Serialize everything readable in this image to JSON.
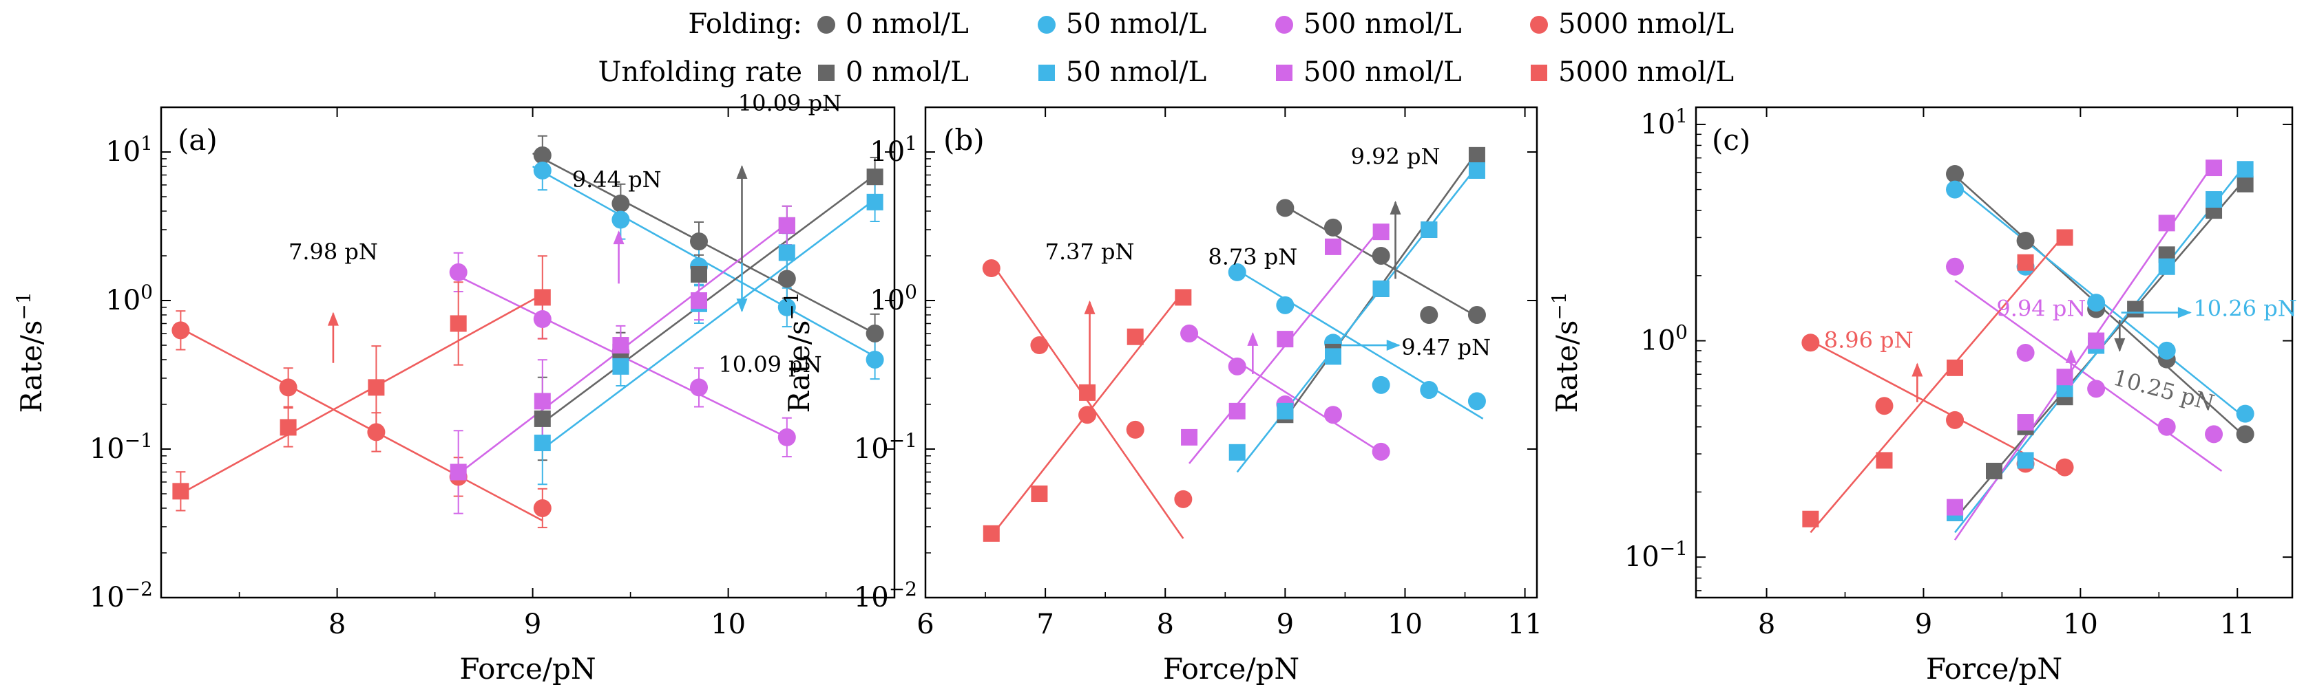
{
  "legend": {
    "folding_label": "Folding:",
    "unfolding_label": "Unfolding rate",
    "entries": [
      "0 nmol/L",
      "50 nmol/L",
      "500 nmol/L",
      "5000 nmol/L"
    ]
  },
  "colors": {
    "0 nmol/L": "#666666",
    "50 nmol/L": "#3fb6e8",
    "500 nmol/L": "#d267e8",
    "5000 nmol/L": "#ef5d5d"
  },
  "chart_data": [
    {
      "type": "scatter",
      "panel_label": "(a)",
      "xlabel": "Force/pN",
      "ylabel": "Rate/s",
      "ylabel_sup": "−1",
      "yscale": "log",
      "xlim": [
        7.1,
        10.85
      ],
      "ylim": [
        0.01,
        20
      ],
      "x_ticks": [
        8,
        9,
        10
      ],
      "y_ticks": [
        {
          "value": 0.01,
          "base": "10",
          "exp": "−2"
        },
        {
          "value": 0.1,
          "base": "10",
          "exp": "−1"
        },
        {
          "value": 1,
          "base": "10",
          "exp": "0"
        },
        {
          "value": 10,
          "base": "10",
          "exp": "1"
        }
      ],
      "series": [
        {
          "name": "0 nmol/L",
          "kind": "folding",
          "x": [
            9.05,
            9.45,
            9.85,
            10.3,
            10.75
          ],
          "y": [
            9.5,
            4.5,
            2.5,
            1.4,
            0.6
          ],
          "fit": [
            [
              9.0,
              9.8
            ],
            [
              10.75,
              0.6
            ]
          ]
        },
        {
          "name": "50 nmol/L",
          "kind": "folding",
          "x": [
            9.05,
            9.45,
            9.85,
            10.3,
            10.75
          ],
          "y": [
            7.5,
            3.5,
            1.7,
            0.9,
            0.4
          ],
          "fit": [
            [
              9.0,
              8.0
            ],
            [
              10.75,
              0.42
            ]
          ]
        },
        {
          "name": "500 nmol/L",
          "kind": "folding",
          "x": [
            8.62,
            9.05,
            9.45,
            9.85,
            10.3
          ],
          "y": [
            1.55,
            0.75,
            0.45,
            0.26,
            0.12
          ],
          "fit": [
            [
              8.6,
              1.5
            ],
            [
              10.3,
              0.12
            ]
          ]
        },
        {
          "name": "5000 nmol/L",
          "kind": "folding",
          "x": [
            7.2,
            7.75,
            8.2,
            8.62,
            9.05
          ],
          "y": [
            0.63,
            0.26,
            0.13,
            0.065,
            0.04
          ],
          "fit": [
            [
              7.2,
              0.65
            ],
            [
              9.05,
              0.033
            ]
          ]
        },
        {
          "name": "0 nmol/L",
          "kind": "unfolding",
          "x": [
            9.05,
            9.45,
            9.85,
            10.3,
            10.75
          ],
          "y": [
            0.16,
            0.45,
            1.5,
            3.2,
            6.8
          ],
          "fit": [
            [
              9.05,
              0.15
            ],
            [
              10.75,
              7.0
            ]
          ]
        },
        {
          "name": "50 nmol/L",
          "kind": "unfolding",
          "x": [
            9.05,
            9.45,
            9.85,
            10.3,
            10.75
          ],
          "y": [
            0.11,
            0.36,
            0.95,
            2.1,
            4.6
          ],
          "fit": [
            [
              9.05,
              0.1
            ],
            [
              10.75,
              4.8
            ]
          ]
        },
        {
          "name": "500 nmol/L",
          "kind": "unfolding",
          "x": [
            8.62,
            9.05,
            9.45,
            9.85,
            10.3
          ],
          "y": [
            0.07,
            0.21,
            0.5,
            1.0,
            3.2
          ],
          "fit": [
            [
              8.6,
              0.065
            ],
            [
              10.3,
              3.3
            ]
          ]
        },
        {
          "name": "5000 nmol/L",
          "kind": "unfolding",
          "x": [
            7.2,
            7.75,
            8.2,
            8.62,
            9.05
          ],
          "y": [
            0.052,
            0.14,
            0.26,
            0.7,
            1.05
          ],
          "fit": [
            [
              7.2,
              0.05
            ],
            [
              9.05,
              1.1
            ]
          ]
        }
      ],
      "annotations": [
        {
          "text": "7.98 pN",
          "x": 7.98,
          "y0": 0.38,
          "y1": 0.82,
          "dir": "up",
          "color": "#ef5d5d",
          "tx": 7.98,
          "ty": 1.9,
          "anchor": "middle"
        },
        {
          "text": "9.44 pN",
          "x": 9.44,
          "y0": 1.3,
          "y1": 2.9,
          "dir": "up",
          "color": "#d267e8",
          "tx": 9.43,
          "ty": 5.8,
          "anchor": "middle"
        },
        {
          "text": "10.09 pN",
          "x": 10.07,
          "y0": 1.8,
          "y1": 8.0,
          "dir": "up",
          "color": "#666666",
          "tx": 10.05,
          "ty": 19,
          "anchor": "start"
        },
        {
          "text": "10.09 pN",
          "x": 10.07,
          "y0": 1.8,
          "y1": 0.85,
          "dir": "down",
          "color": "#3fb6e8",
          "tx": 9.95,
          "ty": 0.33,
          "anchor": "start"
        }
      ]
    },
    {
      "type": "scatter",
      "panel_label": "(b)",
      "xlabel": "Force/pN",
      "ylabel": "Rate/s",
      "ylabel_sup": "−1",
      "yscale": "log",
      "xlim": [
        6,
        11.1
      ],
      "ylim": [
        0.01,
        20
      ],
      "x_ticks": [
        6,
        7,
        8,
        9,
        10,
        11
      ],
      "y_ticks": [
        {
          "value": 0.01,
          "base": "10",
          "exp": "−2"
        },
        {
          "value": 0.1,
          "base": "10",
          "exp": "−1"
        },
        {
          "value": 1,
          "base": "10",
          "exp": "0"
        },
        {
          "value": 10,
          "base": "10",
          "exp": "1"
        }
      ],
      "series": [
        {
          "name": "0 nmol/L",
          "kind": "folding",
          "x": [
            9.0,
            9.4,
            9.8,
            10.2,
            10.6
          ],
          "y": [
            4.2,
            3.1,
            2.0,
            0.8,
            0.8
          ],
          "fit": [
            [
              9.0,
              4.3
            ],
            [
              10.6,
              0.78
            ]
          ]
        },
        {
          "name": "50 nmol/L",
          "kind": "folding",
          "x": [
            8.6,
            9.0,
            9.4,
            9.8,
            10.2,
            10.6
          ],
          "y": [
            1.55,
            0.93,
            0.52,
            0.27,
            0.25,
            0.21
          ],
          "fit": [
            [
              8.6,
              1.6
            ],
            [
              10.65,
              0.16
            ]
          ]
        },
        {
          "name": "500 nmol/L",
          "kind": "folding",
          "x": [
            8.2,
            8.6,
            9.0,
            9.4,
            9.8
          ],
          "y": [
            0.6,
            0.36,
            0.2,
            0.17,
            0.096
          ],
          "fit": [
            [
              8.2,
              0.62
            ],
            [
              9.8,
              0.095
            ]
          ]
        },
        {
          "name": "5000 nmol/L",
          "kind": "folding",
          "x": [
            6.55,
            6.95,
            7.35,
            7.75,
            8.15
          ],
          "y": [
            1.65,
            0.5,
            0.17,
            0.135,
            0.046
          ],
          "fit": [
            [
              6.55,
              1.8
            ],
            [
              8.15,
              0.025
            ]
          ]
        },
        {
          "name": "0 nmol/L",
          "kind": "unfolding",
          "x": [
            9.0,
            9.4,
            9.8,
            10.2,
            10.6
          ],
          "y": [
            0.17,
            0.45,
            1.2,
            3.0,
            9.5
          ],
          "fit": [
            [
              9.0,
              0.16
            ],
            [
              10.6,
              10.0
            ]
          ]
        },
        {
          "name": "50 nmol/L",
          "kind": "unfolding",
          "x": [
            8.6,
            9.0,
            9.4,
            9.8,
            10.2,
            10.6
          ],
          "y": [
            0.095,
            0.18,
            0.42,
            1.2,
            3.0,
            7.5
          ],
          "fit": [
            [
              8.6,
              0.07
            ],
            [
              10.6,
              8.0
            ]
          ]
        },
        {
          "name": "500 nmol/L",
          "kind": "unfolding",
          "x": [
            8.2,
            8.6,
            9.0,
            9.4,
            9.8
          ],
          "y": [
            0.12,
            0.18,
            0.55,
            2.3,
            2.9
          ],
          "fit": [
            [
              8.2,
              0.08
            ],
            [
              9.8,
              3.1
            ]
          ]
        },
        {
          "name": "5000 nmol/L",
          "kind": "unfolding",
          "x": [
            6.55,
            6.95,
            7.35,
            7.75,
            8.15
          ],
          "y": [
            0.027,
            0.05,
            0.24,
            0.57,
            1.05
          ],
          "fit": [
            [
              6.55,
              0.026
            ],
            [
              8.15,
              1.15
            ]
          ]
        }
      ],
      "annotations": [
        {
          "text": "7.37 pN",
          "x": 7.37,
          "y0": 0.22,
          "y1": 0.98,
          "dir": "up",
          "color": "#ef5d5d",
          "tx": 7.37,
          "ty": 1.9,
          "anchor": "middle"
        },
        {
          "text": "8.73 pN",
          "x": 8.73,
          "y0": 0.32,
          "y1": 0.6,
          "dir": "up",
          "color": "#d267e8",
          "tx": 8.73,
          "ty": 1.75,
          "anchor": "middle"
        },
        {
          "text": "9.92 pN",
          "x": 9.92,
          "y0": 1.4,
          "y1": 4.6,
          "dir": "up",
          "color": "#666666",
          "tx": 9.92,
          "ty": 8.3,
          "anchor": "middle"
        },
        {
          "text": "9.47 pN",
          "x": 9.47,
          "y0": 0.5,
          "y1": 0.5,
          "dir": "right",
          "x1": 9.95,
          "color": "#3fb6e8",
          "tx": 9.97,
          "ty": 0.43,
          "anchor": "start"
        }
      ]
    },
    {
      "type": "scatter",
      "panel_label": "(c)",
      "xlabel": "Force/pN",
      "ylabel": "Rate/s",
      "ylabel_sup": "−1",
      "yscale": "log",
      "xlim": [
        7.55,
        11.35
      ],
      "ylim": [
        0.065,
        12
      ],
      "x_ticks": [
        8,
        9,
        10,
        11
      ],
      "y_ticks": [
        {
          "value": 0.1,
          "base": "10",
          "exp": "−1"
        },
        {
          "value": 1,
          "base": "10",
          "exp": "0"
        },
        {
          "value": 10,
          "base": "10",
          "exp": "1"
        }
      ],
      "series": [
        {
          "name": "0 nmol/L",
          "kind": "folding",
          "x": [
            9.2,
            9.65,
            10.1,
            10.55,
            11.05
          ],
          "y": [
            5.9,
            2.9,
            1.4,
            0.82,
            0.37
          ],
          "fit": [
            [
              9.2,
              5.8
            ],
            [
              11.05,
              0.36
            ]
          ]
        },
        {
          "name": "50 nmol/L",
          "kind": "folding",
          "x": [
            9.2,
            9.65,
            10.1,
            10.55,
            11.05
          ],
          "y": [
            5.0,
            2.2,
            1.5,
            0.9,
            0.46
          ],
          "fit": [
            [
              9.2,
              5.3
            ],
            [
              11.05,
              0.44
            ]
          ]
        },
        {
          "name": "500 nmol/L",
          "kind": "folding",
          "x": [
            9.2,
            9.65,
            10.1,
            10.55,
            10.85
          ],
          "y": [
            2.2,
            0.88,
            0.6,
            0.4,
            0.37
          ],
          "fit": [
            [
              9.2,
              1.9
            ],
            [
              10.9,
              0.25
            ]
          ]
        },
        {
          "name": "5000 nmol/L",
          "kind": "folding",
          "x": [
            8.28,
            8.75,
            9.2,
            9.65,
            9.9
          ],
          "y": [
            0.98,
            0.5,
            0.43,
            0.27,
            0.26
          ],
          "fit": [
            [
              8.28,
              1.0
            ],
            [
              9.9,
              0.24
            ]
          ]
        },
        {
          "name": "0 nmol/L",
          "kind": "unfolding",
          "x": [
            9.2,
            9.45,
            9.65,
            9.9,
            10.35,
            10.55,
            10.85,
            11.05
          ],
          "y": [
            0.16,
            0.25,
            0.4,
            0.55,
            1.4,
            2.5,
            4.0,
            5.3
          ],
          "fit": [
            [
              9.2,
              0.15
            ],
            [
              11.05,
              5.6
            ]
          ]
        },
        {
          "name": "50 nmol/L",
          "kind": "unfolding",
          "x": [
            9.2,
            9.65,
            9.9,
            10.1,
            10.55,
            10.85,
            11.05
          ],
          "y": [
            0.16,
            0.28,
            0.6,
            0.95,
            2.2,
            4.5,
            6.2
          ],
          "fit": [
            [
              9.2,
              0.13
            ],
            [
              11.05,
              6.5
            ]
          ]
        },
        {
          "name": "500 nmol/L",
          "kind": "unfolding",
          "x": [
            9.2,
            9.65,
            9.9,
            10.1,
            10.55,
            10.85
          ],
          "y": [
            0.17,
            0.42,
            0.68,
            1.0,
            3.5,
            6.3
          ],
          "fit": [
            [
              9.2,
              0.12
            ],
            [
              10.85,
              6.6
            ]
          ]
        },
        {
          "name": "5000 nmol/L",
          "kind": "unfolding",
          "x": [
            8.28,
            8.75,
            9.2,
            9.65,
            9.9
          ],
          "y": [
            0.15,
            0.28,
            0.75,
            2.3,
            3.0
          ],
          "fit": [
            [
              8.28,
              0.13
            ],
            [
              9.9,
              3.1
            ]
          ]
        }
      ],
      "annotations": [
        {
          "text": "8.96 pN",
          "x": 8.96,
          "y0": 0.52,
          "y1": 0.78,
          "dir": "up",
          "color": "#ef5d5d",
          "tx": 8.65,
          "ty": 0.93,
          "anchor": "middle"
        },
        {
          "text": "9.94 pN",
          "x": 9.94,
          "y0": 0.62,
          "y1": 0.9,
          "dir": "up",
          "color": "#d267e8",
          "tx": 9.75,
          "ty": 1.3,
          "anchor": "middle"
        },
        {
          "text": "10.26 pN",
          "x": 10.26,
          "y0": 1.35,
          "y1": 1.35,
          "dir": "right",
          "x1": 10.7,
          "color": "#3fb6e8",
          "tx": 10.72,
          "ty": 1.3,
          "anchor": "start"
        },
        {
          "text": "10.25 pN",
          "x": 10.25,
          "y0": 1.25,
          "y1": 0.9,
          "dir": "down",
          "color": "#666666",
          "tx": 10.2,
          "ty": 0.63,
          "anchor": "start",
          "rotate": 15
        }
      ]
    }
  ]
}
